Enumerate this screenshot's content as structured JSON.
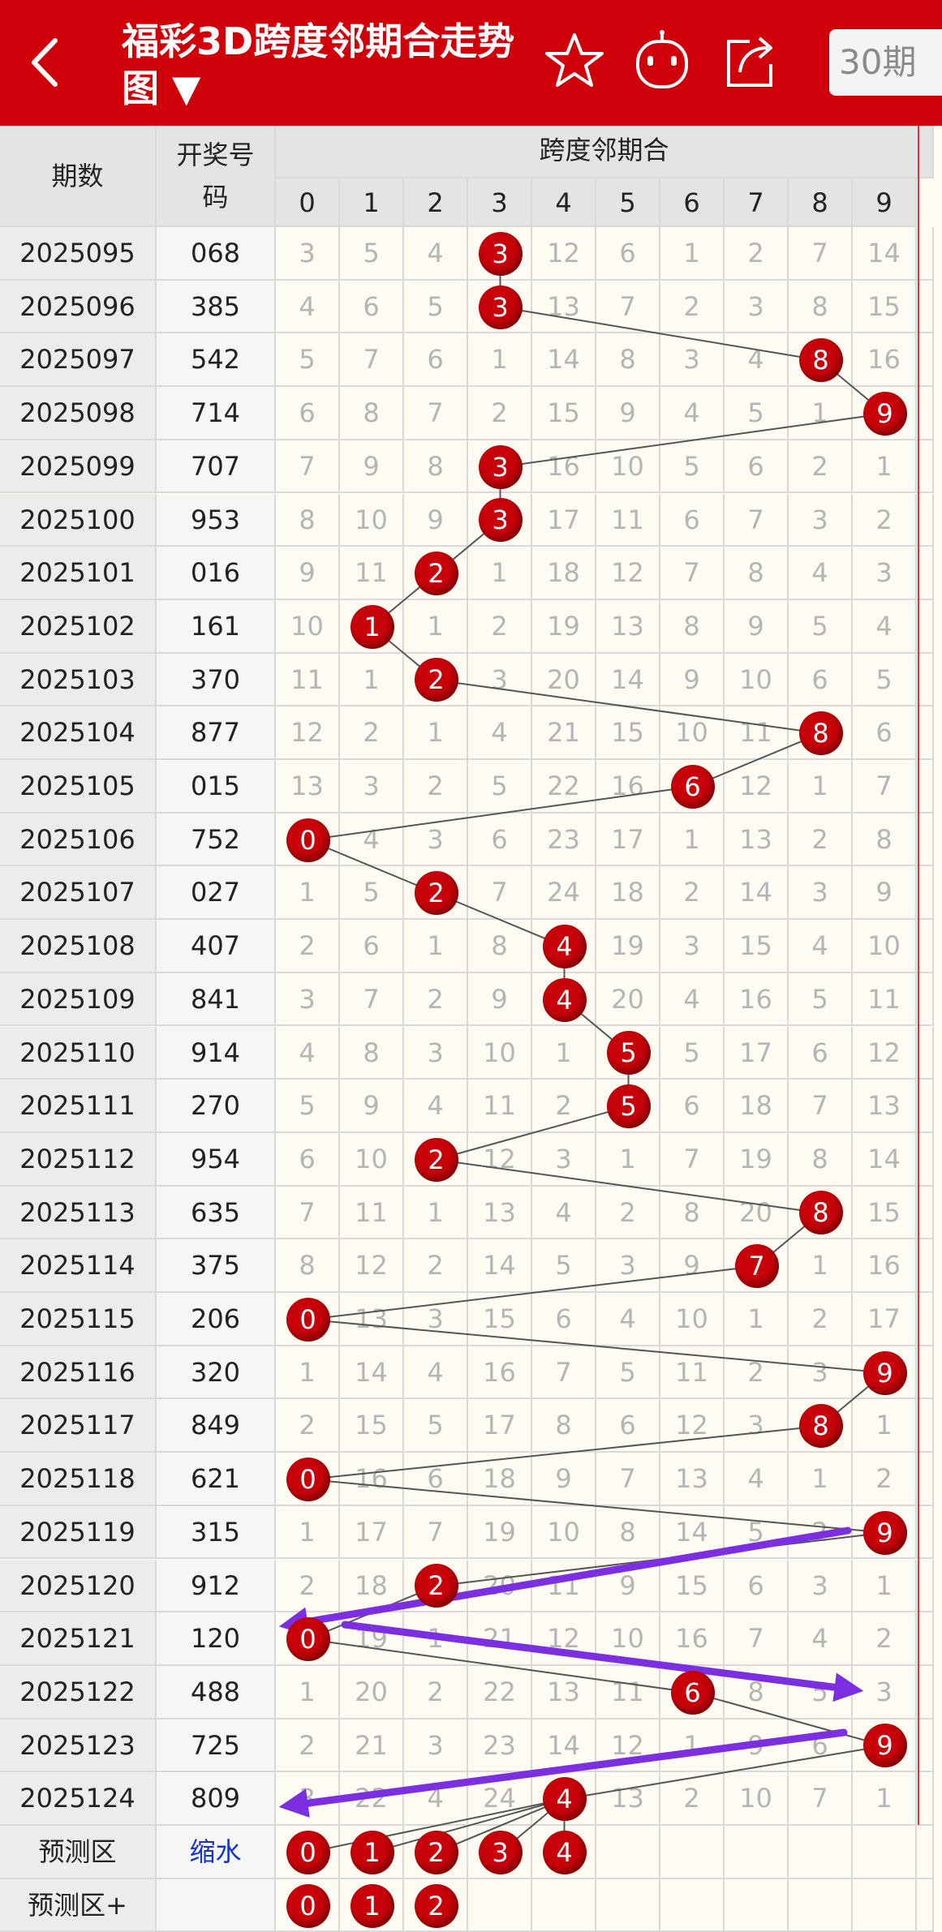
{
  "header": {
    "title": "福彩3D跨度邻期合走势图 ▼",
    "period_selector": "30期",
    "icons": [
      "back-arrow-icon",
      "star-icon",
      "robot-icon",
      "share-icon"
    ]
  },
  "table": {
    "col_period": "期数",
    "col_number": "开奖号码",
    "group_title": "跨度邻期合",
    "digits": [
      "0",
      "1",
      "2",
      "3",
      "4",
      "5",
      "6",
      "7",
      "8",
      "9"
    ],
    "rows": [
      {
        "period": "2025095",
        "number": "068",
        "hit": 3,
        "cells": [
          3,
          5,
          4,
          3,
          12,
          6,
          1,
          2,
          7,
          14
        ]
      },
      {
        "period": "2025096",
        "number": "385",
        "hit": 3,
        "cells": [
          4,
          6,
          5,
          3,
          13,
          7,
          2,
          3,
          8,
          15
        ]
      },
      {
        "period": "2025097",
        "number": "542",
        "hit": 8,
        "cells": [
          5,
          7,
          6,
          1,
          14,
          8,
          3,
          4,
          8,
          16
        ]
      },
      {
        "period": "2025098",
        "number": "714",
        "hit": 9,
        "cells": [
          6,
          8,
          7,
          2,
          15,
          9,
          4,
          5,
          1,
          9
        ]
      },
      {
        "period": "2025099",
        "number": "707",
        "hit": 3,
        "cells": [
          7,
          9,
          8,
          3,
          16,
          10,
          5,
          6,
          2,
          1
        ]
      },
      {
        "period": "2025100",
        "number": "953",
        "hit": 3,
        "cells": [
          8,
          10,
          9,
          3,
          17,
          11,
          6,
          7,
          3,
          2
        ]
      },
      {
        "period": "2025101",
        "number": "016",
        "hit": 2,
        "cells": [
          9,
          11,
          2,
          1,
          18,
          12,
          7,
          8,
          4,
          3
        ]
      },
      {
        "period": "2025102",
        "number": "161",
        "hit": 1,
        "cells": [
          10,
          1,
          1,
          2,
          19,
          13,
          8,
          9,
          5,
          4
        ]
      },
      {
        "period": "2025103",
        "number": "370",
        "hit": 2,
        "cells": [
          11,
          1,
          2,
          3,
          20,
          14,
          9,
          10,
          6,
          5
        ]
      },
      {
        "period": "2025104",
        "number": "877",
        "hit": 8,
        "cells": [
          12,
          2,
          1,
          4,
          21,
          15,
          10,
          11,
          8,
          6
        ]
      },
      {
        "period": "2025105",
        "number": "015",
        "hit": 6,
        "cells": [
          13,
          3,
          2,
          5,
          22,
          16,
          6,
          12,
          1,
          7
        ]
      },
      {
        "period": "2025106",
        "number": "752",
        "hit": 0,
        "cells": [
          0,
          4,
          3,
          6,
          23,
          17,
          1,
          13,
          2,
          8
        ]
      },
      {
        "period": "2025107",
        "number": "027",
        "hit": 2,
        "cells": [
          1,
          5,
          2,
          7,
          24,
          18,
          2,
          14,
          3,
          9
        ]
      },
      {
        "period": "2025108",
        "number": "407",
        "hit": 4,
        "cells": [
          2,
          6,
          1,
          8,
          4,
          19,
          3,
          15,
          4,
          10
        ]
      },
      {
        "period": "2025109",
        "number": "841",
        "hit": 4,
        "cells": [
          3,
          7,
          2,
          9,
          4,
          20,
          4,
          16,
          5,
          11
        ]
      },
      {
        "period": "2025110",
        "number": "914",
        "hit": 5,
        "cells": [
          4,
          8,
          3,
          10,
          1,
          5,
          5,
          17,
          6,
          12
        ]
      },
      {
        "period": "2025111",
        "number": "270",
        "hit": 5,
        "cells": [
          5,
          9,
          4,
          11,
          2,
          5,
          6,
          18,
          7,
          13
        ]
      },
      {
        "period": "2025112",
        "number": "954",
        "hit": 2,
        "cells": [
          6,
          10,
          2,
          12,
          3,
          1,
          7,
          19,
          8,
          14
        ]
      },
      {
        "period": "2025113",
        "number": "635",
        "hit": 8,
        "cells": [
          7,
          11,
          1,
          13,
          4,
          2,
          8,
          20,
          8,
          15
        ]
      },
      {
        "period": "2025114",
        "number": "375",
        "hit": 7,
        "cells": [
          8,
          12,
          2,
          14,
          5,
          3,
          9,
          7,
          1,
          16
        ]
      },
      {
        "period": "2025115",
        "number": "206",
        "hit": 0,
        "cells": [
          0,
          13,
          3,
          15,
          6,
          4,
          10,
          1,
          2,
          17
        ]
      },
      {
        "period": "2025116",
        "number": "320",
        "hit": 9,
        "cells": [
          1,
          14,
          4,
          16,
          7,
          5,
          11,
          2,
          3,
          9
        ]
      },
      {
        "period": "2025117",
        "number": "849",
        "hit": 8,
        "cells": [
          2,
          15,
          5,
          17,
          8,
          6,
          12,
          3,
          8,
          1
        ]
      },
      {
        "period": "2025118",
        "number": "621",
        "hit": 0,
        "cells": [
          0,
          16,
          6,
          18,
          9,
          7,
          13,
          4,
          1,
          2
        ]
      },
      {
        "period": "2025119",
        "number": "315",
        "hit": 9,
        "cells": [
          1,
          17,
          7,
          19,
          10,
          8,
          14,
          5,
          2,
          9
        ]
      },
      {
        "period": "2025120",
        "number": "912",
        "hit": 2,
        "cells": [
          2,
          18,
          2,
          20,
          11,
          9,
          15,
          6,
          3,
          1
        ]
      },
      {
        "period": "2025121",
        "number": "120",
        "hit": 0,
        "cells": [
          0,
          19,
          1,
          21,
          12,
          10,
          16,
          7,
          4,
          2
        ]
      },
      {
        "period": "2025122",
        "number": "488",
        "hit": 6,
        "cells": [
          1,
          20,
          2,
          22,
          13,
          11,
          6,
          8,
          5,
          3
        ]
      },
      {
        "period": "2025123",
        "number": "725",
        "hit": 9,
        "cells": [
          2,
          21,
          3,
          23,
          14,
          12,
          1,
          9,
          6,
          9
        ]
      },
      {
        "period": "2025124",
        "number": "809",
        "hit": 4,
        "cells": [
          3,
          22,
          4,
          24,
          4,
          13,
          2,
          10,
          7,
          1
        ]
      }
    ],
    "forecast": {
      "label": "预测区",
      "action": "缩水",
      "balls": [
        "0",
        "1",
        "2",
        "3",
        "4"
      ]
    },
    "forecast_plus": {
      "label": "预测区+",
      "balls": [
        "0",
        "1",
        "2"
      ]
    }
  },
  "colors": {
    "header": "#d0000b",
    "ball": "#c8000a",
    "connector": "#555555",
    "annotation": "#7b2fe0"
  }
}
